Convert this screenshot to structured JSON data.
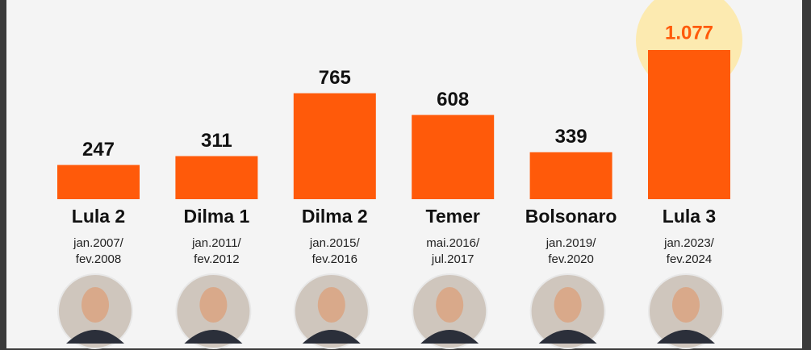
{
  "chart_data": {
    "type": "bar",
    "categories": [
      "Lula 2",
      "Dilma 1",
      "Dilma 2",
      "Temer",
      "Bolsonaro",
      "Lula 3"
    ],
    "periods": [
      [
        "jan.2007/",
        "fev.2008"
      ],
      [
        "jan.2011/",
        "fev.2012"
      ],
      [
        "jan.2015/",
        "fev.2016"
      ],
      [
        "mai.2016/",
        "jul.2017"
      ],
      [
        "jan.2019/",
        "fev.2020"
      ],
      [
        "jan.2023/",
        "fev.2024"
      ]
    ],
    "values": [
      247,
      311,
      765,
      608,
      339,
      1077
    ],
    "value_labels": [
      "247",
      "311",
      "765",
      "608",
      "339",
      "1.077"
    ],
    "color": "#ff5a0a",
    "highlight_color": "#ff5a0a"
  }
}
